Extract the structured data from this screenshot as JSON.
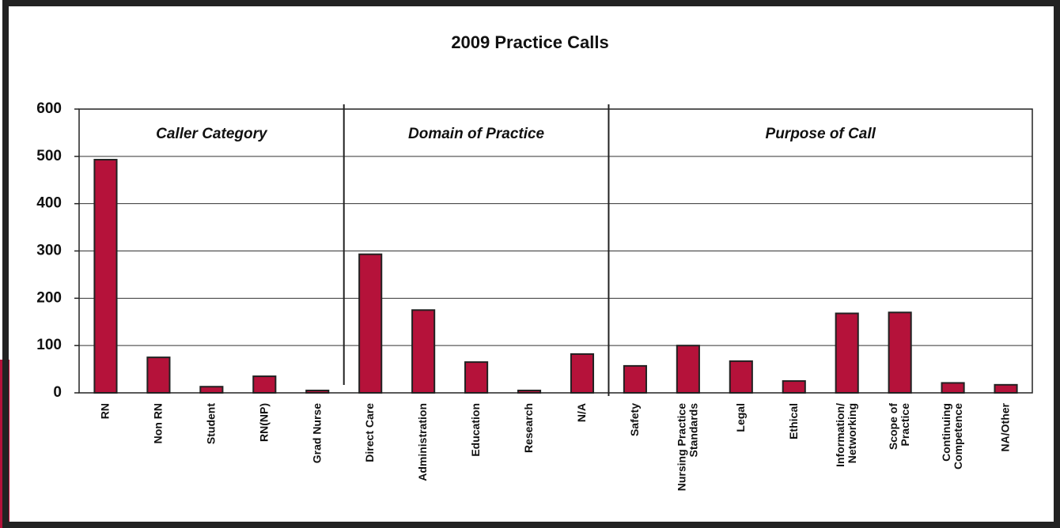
{
  "chart_data": {
    "type": "bar",
    "title": "2009 Practice Calls",
    "groups": [
      {
        "name": "Caller Category",
        "categories": [
          "RN",
          "Non RN",
          "Student",
          "RN(NP)",
          "Grad Nurse"
        ],
        "values": [
          493,
          75,
          13,
          35,
          5
        ]
      },
      {
        "name": "Domain of Practice",
        "categories": [
          "Direct Care",
          "Administration",
          "Education",
          "Research",
          "N/A"
        ],
        "values": [
          293,
          175,
          65,
          5,
          82
        ]
      },
      {
        "name": "Purpose of Call",
        "categories": [
          "Safety",
          "Nursing Practice\nStandards",
          "Legal",
          "Ethical",
          "Information/\nNetworking",
          "Scope of\nPractice",
          "Continuing\nCompetence",
          "NA/Other"
        ],
        "values": [
          57,
          100,
          67,
          25,
          168,
          170,
          21,
          17
        ]
      }
    ],
    "color": "#b5123a",
    "ylim": [
      0,
      600
    ],
    "yticks": [
      0,
      100,
      200,
      300,
      400,
      500,
      600
    ],
    "grid": true
  }
}
